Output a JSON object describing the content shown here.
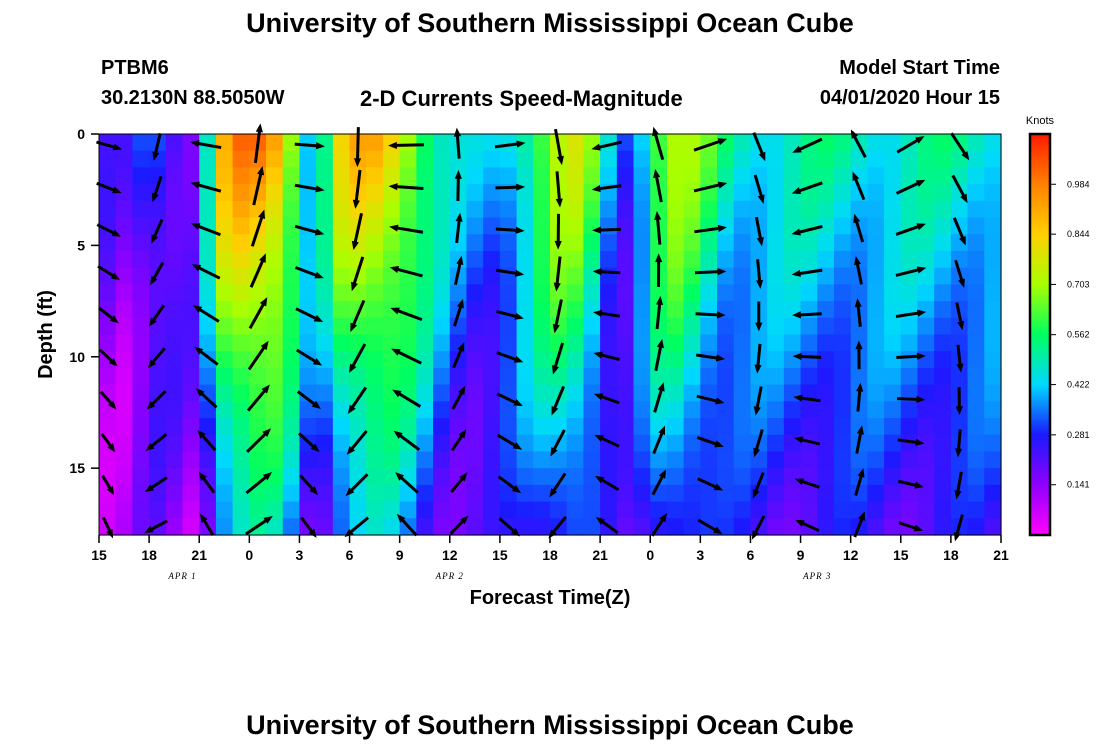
{
  "title_top": "University of Southern Mississippi Ocean Cube",
  "title_bottom": "University of Southern Mississippi Ocean Cube",
  "station": {
    "id": "PTBM6",
    "coords": "30.2130N 88.5050W"
  },
  "chart_title": "2-D Currents Speed-Magnitude",
  "model": {
    "label": "Model Start Time",
    "start": "04/01/2020 Hour 15"
  },
  "chart_data": {
    "type": "heatmap",
    "title": "2-D Currents Speed-Magnitude",
    "xlabel": "Forecast Time(Z)",
    "ylabel": "Depth (ft)",
    "x_ticks": [
      "15",
      "18",
      "21",
      "0",
      "3",
      "6",
      "9",
      "12",
      "15",
      "18",
      "21",
      "0",
      "3",
      "6",
      "9",
      "12",
      "15",
      "18",
      "21"
    ],
    "date_labels": [
      {
        "text": "APR 1",
        "at_hours": 5
      },
      {
        "text": "APR 2",
        "at_hours": 21
      },
      {
        "text": "APR 3",
        "at_hours": 43
      }
    ],
    "xlim_hours": [
      0,
      54
    ],
    "y_ticks": [
      0,
      5,
      10,
      15
    ],
    "ylim": [
      0,
      18
    ],
    "y_inverted": true,
    "colorbar": {
      "unit": "Knots",
      "ticks": [
        0.141,
        0.281,
        0.422,
        0.562,
        0.703,
        0.844,
        0.984
      ],
      "range": [
        0,
        1.125
      ],
      "colors": [
        "#ff00ff",
        "#9000ff",
        "#1a1aff",
        "#00d8ff",
        "#00ff60",
        "#a8ff00",
        "#ffd000",
        "#ff8000",
        "#ff1a00"
      ]
    },
    "speed_profile_surface": [
      {
        "hour": 0,
        "speed": 0.25
      },
      {
        "hour": 1,
        "speed": 0.15
      },
      {
        "hour": 2,
        "speed": 0.2
      },
      {
        "hour": 3,
        "speed": 0.35
      },
      {
        "hour": 4,
        "speed": 0.3
      },
      {
        "hour": 5,
        "speed": 0.25
      },
      {
        "hour": 6,
        "speed": 0.2
      },
      {
        "hour": 7,
        "speed": 0.8
      },
      {
        "hour": 8,
        "speed": 0.95
      },
      {
        "hour": 9,
        "speed": 1.0
      },
      {
        "hour": 10,
        "speed": 0.98
      },
      {
        "hour": 11,
        "speed": 0.9
      },
      {
        "hour": 12,
        "speed": 0.6
      },
      {
        "hour": 13,
        "speed": 0.35
      },
      {
        "hour": 14,
        "speed": 0.75
      },
      {
        "hour": 15,
        "speed": 0.85
      },
      {
        "hour": 16,
        "speed": 0.9
      },
      {
        "hour": 17,
        "speed": 0.88
      },
      {
        "hour": 18,
        "speed": 0.82
      },
      {
        "hour": 19,
        "speed": 0.7
      },
      {
        "hour": 20,
        "speed": 0.55
      },
      {
        "hour": 21,
        "speed": 0.45
      },
      {
        "hour": 22,
        "speed": 0.4
      },
      {
        "hour": 23,
        "speed": 0.38
      },
      {
        "hour": 24,
        "speed": 0.42
      },
      {
        "hour": 25,
        "speed": 0.5
      },
      {
        "hour": 26,
        "speed": 0.62
      },
      {
        "hour": 27,
        "speed": 0.72
      },
      {
        "hour": 28,
        "speed": 0.78
      },
      {
        "hour": 29,
        "speed": 0.72
      },
      {
        "hour": 30,
        "speed": 0.55
      },
      {
        "hour": 31,
        "speed": 0.3
      },
      {
        "hour": 32,
        "speed": 0.35
      },
      {
        "hour": 33,
        "speed": 0.6
      },
      {
        "hour": 34,
        "speed": 0.75
      },
      {
        "hour": 35,
        "speed": 0.72
      },
      {
        "hour": 36,
        "speed": 0.65
      },
      {
        "hour": 37,
        "speed": 0.55
      },
      {
        "hour": 38,
        "speed": 0.5
      }
    ]
  }
}
